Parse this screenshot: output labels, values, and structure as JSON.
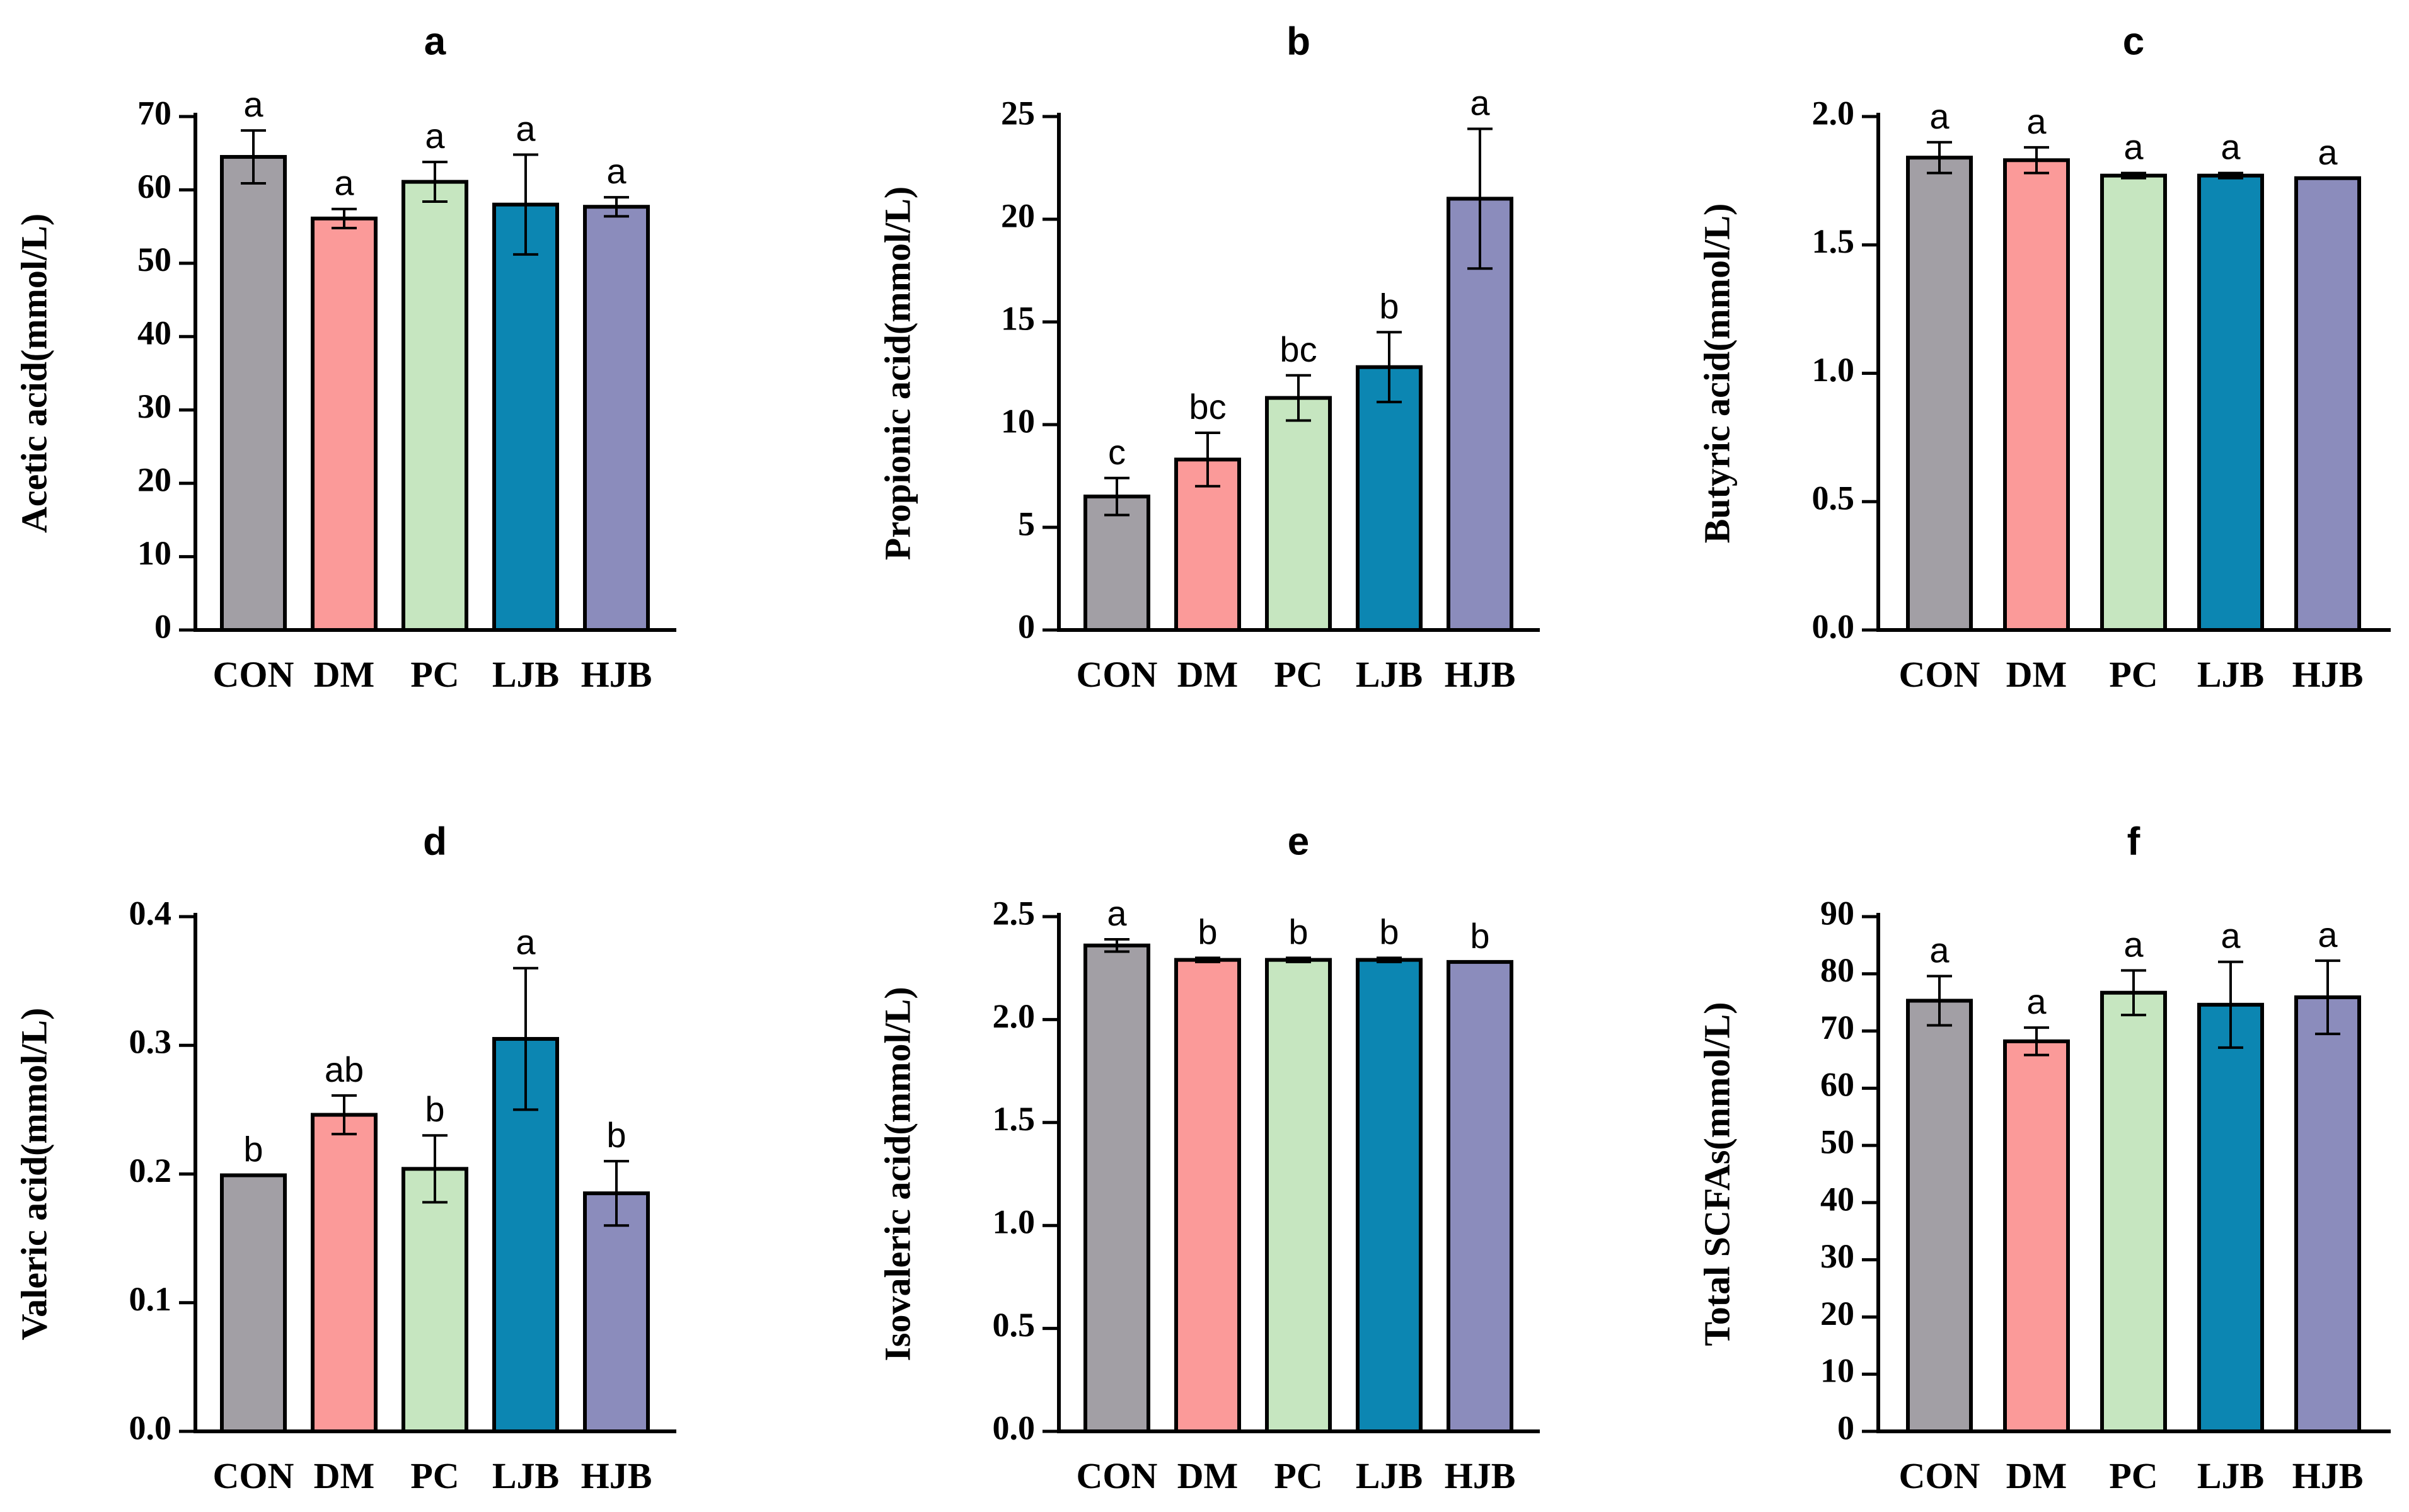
{
  "colors": {
    "CON": "#a29fa5",
    "DM": "#fb9a99",
    "PC": "#c6e6c0",
    "LJB": "#0c86b2",
    "HJB": "#8b8cbc"
  },
  "chart_data": [
    {
      "type": "bar",
      "title": "a",
      "xlabel": "",
      "ylabel": "Acetic acid(mmol/L)",
      "categories": [
        "CON",
        "DM",
        "PC",
        "LJB",
        "HJB"
      ],
      "values": [
        64.5,
        56.1,
        61.1,
        58.0,
        57.7
      ],
      "errors": [
        3.6,
        1.3,
        2.7,
        6.8,
        1.3
      ],
      "significance": [
        "a",
        "a",
        "a",
        "a",
        "a"
      ],
      "ylim": [
        0,
        70
      ],
      "yticks": [
        "0",
        "10",
        "20",
        "30",
        "40",
        "50",
        "60",
        "70"
      ]
    },
    {
      "type": "bar",
      "title": "b",
      "xlabel": "",
      "ylabel": "Propionic acid(mmol/L)",
      "categories": [
        "CON",
        "DM",
        "PC",
        "LJB",
        "HJB"
      ],
      "values": [
        6.5,
        8.3,
        11.3,
        12.8,
        21.0
      ],
      "errors": [
        0.9,
        1.3,
        1.1,
        1.7,
        3.4
      ],
      "significance": [
        "c",
        "bc",
        "bc",
        "b",
        "a"
      ],
      "ylim": [
        0,
        25
      ],
      "yticks": [
        "0",
        "5",
        "10",
        "15",
        "20",
        "25"
      ]
    },
    {
      "type": "bar",
      "title": "c",
      "xlabel": "",
      "ylabel": "Butyric acid(mmol/L)",
      "categories": [
        "CON",
        "DM",
        "PC",
        "LJB",
        "HJB"
      ],
      "values": [
        1.84,
        1.83,
        1.77,
        1.77,
        1.76
      ],
      "errors": [
        0.06,
        0.05,
        0.01,
        0.01,
        0.0
      ],
      "significance": [
        "a",
        "a",
        "a",
        "a",
        "a"
      ],
      "ylim": [
        0,
        2.0
      ],
      "yticks": [
        "0.0",
        "0.5",
        "1.0",
        "1.5",
        "2.0"
      ]
    },
    {
      "type": "bar",
      "title": "d",
      "xlabel": "",
      "ylabel": "Valeric acid(mmol/L)",
      "categories": [
        "CON",
        "DM",
        "PC",
        "LJB",
        "HJB"
      ],
      "values": [
        0.199,
        0.246,
        0.204,
        0.305,
        0.185
      ],
      "errors": [
        0.0,
        0.015,
        0.026,
        0.055,
        0.025
      ],
      "significance": [
        "b",
        "ab",
        "b",
        "a",
        "b"
      ],
      "ylim": [
        0,
        0.4
      ],
      "yticks": [
        "0.0",
        "0.1",
        "0.2",
        "0.3",
        "0.4"
      ]
    },
    {
      "type": "bar",
      "title": "e",
      "xlabel": "",
      "ylabel": "Isovaleric acid(mmol/L)",
      "categories": [
        "CON",
        "DM",
        "PC",
        "LJB",
        "HJB"
      ],
      "values": [
        2.36,
        2.29,
        2.29,
        2.29,
        2.28
      ],
      "errors": [
        0.03,
        0.01,
        0.01,
        0.01,
        0.0
      ],
      "significance": [
        "a",
        "b",
        "b",
        "b",
        "b"
      ],
      "ylim": [
        0,
        2.5
      ],
      "yticks": [
        "0.0",
        "0.5",
        "1.0",
        "1.5",
        "2.0",
        "2.5"
      ]
    },
    {
      "type": "bar",
      "title": "f",
      "xlabel": "",
      "ylabel": "Total SCFAs(mmol/L)",
      "categories": [
        "CON",
        "DM",
        "PC",
        "LJB",
        "HJB"
      ],
      "values": [
        75.3,
        68.2,
        76.7,
        74.6,
        75.9
      ],
      "errors": [
        4.3,
        2.4,
        3.9,
        7.5,
        6.4
      ],
      "significance": [
        "a",
        "a",
        "a",
        "a",
        "a"
      ],
      "ylim": [
        0,
        90
      ],
      "yticks": [
        "0",
        "10",
        "20",
        "30",
        "40",
        "50",
        "60",
        "70",
        "80",
        "90"
      ]
    }
  ]
}
